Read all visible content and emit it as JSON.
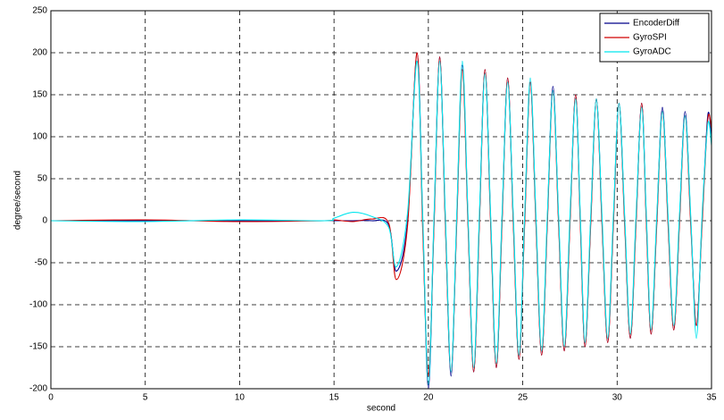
{
  "chart_data": {
    "type": "line",
    "x_label": "second",
    "y_label": "degree/second",
    "x": [
      0,
      5,
      10,
      14.5,
      15,
      16,
      17,
      17.9,
      18.3,
      18.9,
      19.4,
      19.7,
      20.0,
      20.3,
      20.6,
      20.9,
      21.2,
      21.5,
      21.8,
      22.1,
      22.4,
      22.7,
      23.0,
      23.3,
      23.6,
      23.9,
      24.2,
      24.5,
      24.8,
      25.1,
      25.4,
      25.7,
      26.0,
      26.3,
      26.6,
      26.9,
      27.2,
      27.5,
      27.8,
      28.05,
      28.3,
      28.6,
      28.9,
      29.2,
      29.5,
      29.8,
      30.1,
      30.4,
      30.7,
      31.0,
      31.3,
      31.55,
      31.8,
      32.1,
      32.4,
      32.7,
      33.0,
      33.3,
      33.6,
      33.9,
      34.2,
      34.5,
      34.8,
      35
    ],
    "series": [
      {
        "name": "EncoderDiff",
        "color": "#00008b",
        "values": [
          0,
          0,
          0,
          0,
          0,
          0,
          0,
          -5,
          -60,
          0,
          200,
          0,
          -200,
          0,
          195,
          0,
          -185,
          0,
          185,
          0,
          -180,
          0,
          180,
          0,
          -175,
          0,
          170,
          0,
          -165,
          0,
          165,
          0,
          -160,
          0,
          160,
          0,
          -155,
          0,
          150,
          0,
          -150,
          0,
          145,
          0,
          -145,
          0,
          140,
          0,
          -140,
          0,
          140,
          0,
          -135,
          0,
          135,
          0,
          -130,
          0,
          130,
          0,
          -125,
          0,
          125,
          100
        ]
      },
      {
        "name": "GyroSPI",
        "color": "#d00000",
        "values": [
          0,
          1,
          -1,
          0,
          1,
          -1,
          2,
          -3,
          -70,
          -5,
          200,
          -10,
          -185,
          -5,
          195,
          -5,
          -180,
          -5,
          180,
          -5,
          -180,
          -5,
          180,
          -5,
          -175,
          -5,
          170,
          -5,
          -165,
          -5,
          165,
          -5,
          -160,
          -5,
          155,
          -5,
          -155,
          -5,
          150,
          -5,
          -150,
          -5,
          145,
          -5,
          -145,
          -5,
          140,
          -5,
          -140,
          -5,
          140,
          -5,
          -135,
          -5,
          130,
          -5,
          -130,
          -5,
          125,
          -5,
          -125,
          -5,
          120,
          110
        ]
      },
      {
        "name": "GyroADC",
        "color": "#00e5ee",
        "values": [
          0,
          -1,
          1,
          0,
          3,
          10,
          5,
          -8,
          -55,
          10,
          190,
          5,
          -195,
          5,
          190,
          5,
          -180,
          5,
          190,
          5,
          -175,
          5,
          175,
          5,
          -170,
          5,
          165,
          5,
          -160,
          5,
          170,
          5,
          -155,
          5,
          155,
          5,
          -150,
          5,
          145,
          5,
          -145,
          5,
          145,
          5,
          -140,
          5,
          140,
          5,
          -135,
          5,
          135,
          5,
          -130,
          5,
          130,
          5,
          -125,
          5,
          125,
          5,
          -140,
          5,
          115,
          90
        ]
      }
    ],
    "xlim": [
      0,
      35
    ],
    "xticks": [
      0,
      5,
      10,
      15,
      20,
      25,
      30,
      35
    ],
    "ylim": [
      -200,
      250
    ],
    "yticks": [
      -200,
      -150,
      -100,
      -50,
      0,
      50,
      100,
      150,
      200,
      250
    ],
    "grid": true,
    "legend": "top-right"
  }
}
